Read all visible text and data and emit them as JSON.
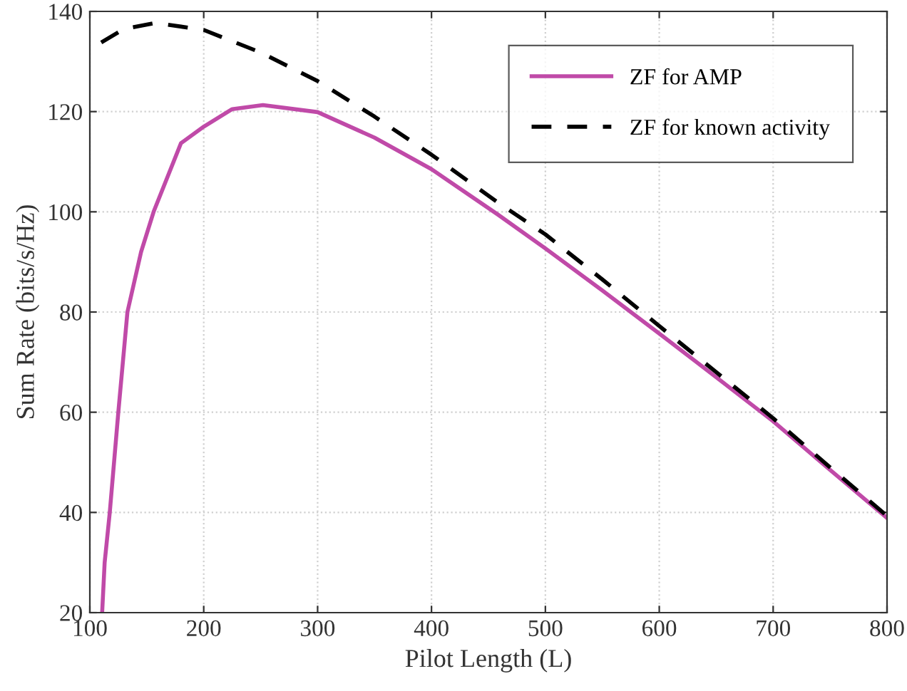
{
  "chart_data": {
    "type": "line",
    "xlabel": "Pilot Length (L)",
    "ylabel": "Sum Rate (bits/s/Hz)",
    "xlim": [
      100,
      800
    ],
    "ylim": [
      20,
      140
    ],
    "xticks": [
      100,
      200,
      300,
      400,
      500,
      600,
      700,
      800
    ],
    "yticks": [
      20,
      40,
      60,
      80,
      100,
      120,
      140
    ],
    "grid": true,
    "legend": "top right",
    "series": [
      {
        "name": "ZF for AMP",
        "color": "#c04aa8",
        "line_style": "solid",
        "x": [
          110.8,
          113,
          117.5,
          125,
          133,
          145,
          156,
          180,
          200,
          225,
          252,
          300,
          350,
          400,
          458,
          500,
          550,
          600,
          650,
          700,
          750,
          800
        ],
        "values": [
          20,
          30,
          40,
          60,
          80,
          92,
          100,
          113.7,
          117,
          120.5,
          121.3,
          119.9,
          114.8,
          108.5,
          99.5,
          92.7,
          84.3,
          75.7,
          67,
          58.2,
          48.5,
          38.9
        ]
      },
      {
        "name": "ZF for known activity",
        "color": "#000000",
        "line_style": "dashed",
        "x": [
          110,
          130,
          158,
          200,
          250,
          300,
          350,
          400,
          458,
          500,
          550,
          600,
          650,
          700,
          750,
          800
        ],
        "values": [
          133.8,
          136.5,
          137.7,
          136.3,
          131.8,
          126.1,
          119,
          111.4,
          101.9,
          95.5,
          86.5,
          77.2,
          68,
          58.8,
          49,
          39.3
        ]
      }
    ]
  }
}
